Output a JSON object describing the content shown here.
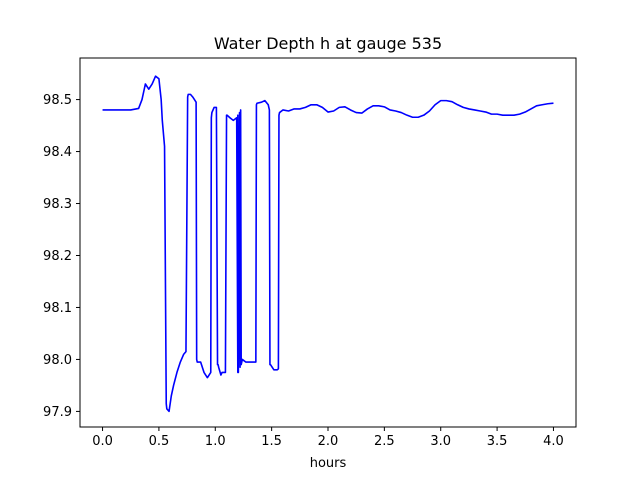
{
  "chart_data": {
    "type": "line",
    "title": "Water Depth h at gauge 535",
    "xlabel": "hours",
    "ylabel": "",
    "xlim": [
      -0.2,
      4.2
    ],
    "ylim": [
      97.87,
      98.58
    ],
    "xticks": [
      "0.0",
      "0.5",
      "1.0",
      "1.5",
      "2.0",
      "2.5",
      "3.0",
      "3.5",
      "4.0"
    ],
    "xtick_values": [
      0.0,
      0.5,
      1.0,
      1.5,
      2.0,
      2.5,
      3.0,
      3.5,
      4.0
    ],
    "yticks": [
      "97.9",
      "98.0",
      "98.1",
      "98.2",
      "98.3",
      "98.4",
      "98.5"
    ],
    "ytick_values": [
      97.9,
      98.0,
      98.1,
      98.2,
      98.3,
      98.4,
      98.5
    ],
    "grid": false,
    "line_color": "#0000ff",
    "series": [
      {
        "x": [
          0.0,
          0.25,
          0.32,
          0.35,
          0.38,
          0.41,
          0.44,
          0.47,
          0.5,
          0.52,
          0.53,
          0.55,
          0.565,
          0.57,
          0.59,
          0.61,
          0.63,
          0.66,
          0.69,
          0.72,
          0.74,
          0.755,
          0.76,
          0.78,
          0.8,
          0.83,
          0.835,
          0.84,
          0.87,
          0.9,
          0.93,
          0.96,
          0.965,
          0.97,
          0.99,
          1.01,
          1.02,
          1.025,
          1.03,
          1.05,
          1.06,
          1.09,
          1.1,
          1.105,
          1.13,
          1.16,
          1.19,
          1.2,
          1.2,
          1.205,
          1.215,
          1.22,
          1.225,
          1.23,
          1.235,
          1.24,
          1.27,
          1.3,
          1.33,
          1.36,
          1.365,
          1.37,
          1.41,
          1.44,
          1.47,
          1.48,
          1.485,
          1.49,
          1.52,
          1.55,
          1.56,
          1.565,
          1.57,
          1.6,
          1.65,
          1.7,
          1.75,
          1.8,
          1.85,
          1.9,
          1.95,
          2.0,
          2.05,
          2.1,
          2.15,
          2.2,
          2.25,
          2.3,
          2.35,
          2.4,
          2.45,
          2.5,
          2.55,
          2.6,
          2.65,
          2.7,
          2.75,
          2.8,
          2.85,
          2.9,
          2.95,
          3.0,
          3.05,
          3.1,
          3.15,
          3.2,
          3.25,
          3.3,
          3.35,
          3.4,
          3.45,
          3.5,
          3.55,
          3.6,
          3.65,
          3.7,
          3.75,
          3.8,
          3.85,
          3.9,
          3.95,
          4.0
        ],
        "y": [
          98.48,
          98.48,
          98.483,
          98.5,
          98.53,
          98.52,
          98.53,
          98.545,
          98.54,
          98.5,
          98.46,
          98.41,
          97.915,
          97.905,
          97.9,
          97.93,
          97.95,
          97.975,
          97.995,
          98.01,
          98.015,
          98.505,
          98.51,
          98.51,
          98.505,
          98.495,
          98.0,
          97.995,
          97.995,
          97.975,
          97.965,
          97.975,
          98.465,
          98.475,
          98.485,
          98.485,
          97.99,
          97.99,
          97.985,
          97.97,
          97.975,
          97.975,
          98.47,
          98.47,
          98.465,
          98.46,
          98.465,
          97.975,
          98.47,
          97.975,
          98.475,
          97.985,
          98.48,
          97.99,
          97.995,
          98.0,
          97.995,
          97.995,
          97.995,
          97.995,
          98.49,
          98.493,
          98.495,
          98.498,
          98.49,
          98.48,
          97.99,
          97.99,
          97.98,
          97.98,
          97.982,
          98.47,
          98.475,
          98.48,
          98.478,
          98.482,
          98.482,
          98.485,
          98.49,
          98.49,
          98.485,
          98.476,
          98.478,
          98.485,
          98.486,
          98.48,
          98.475,
          98.474,
          98.482,
          98.488,
          98.488,
          98.486,
          98.48,
          98.478,
          98.475,
          98.47,
          98.466,
          98.466,
          98.47,
          98.478,
          98.49,
          98.498,
          98.498,
          98.496,
          98.49,
          98.485,
          98.482,
          98.48,
          98.478,
          98.476,
          98.472,
          98.472,
          98.47,
          98.47,
          98.47,
          98.472,
          98.476,
          98.482,
          98.488,
          98.49,
          98.492,
          98.493
        ]
      }
    ]
  }
}
